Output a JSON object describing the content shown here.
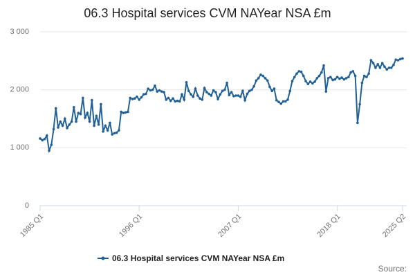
{
  "chart_data": {
    "type": "line",
    "title": "06.3 Hospital services CVM NAYear NSA £m",
    "source": "Source:",
    "categories": [
      "1985 Q1",
      null,
      null,
      null,
      null,
      null,
      null,
      null,
      null,
      null,
      null,
      null,
      null,
      null,
      null,
      null,
      null,
      null,
      null,
      null,
      null,
      null,
      null,
      null,
      null,
      null,
      null,
      null,
      null,
      null,
      null,
      null,
      null,
      null,
      null,
      null,
      null,
      null,
      null,
      null,
      null,
      null,
      null,
      null,
      "1996 Q1",
      null,
      null,
      null,
      null,
      null,
      null,
      null,
      null,
      null,
      null,
      null,
      null,
      null,
      null,
      null,
      null,
      null,
      null,
      null,
      null,
      null,
      null,
      null,
      null,
      null,
      null,
      null,
      null,
      null,
      null,
      null,
      null,
      null,
      null,
      null,
      null,
      null,
      null,
      null,
      null,
      null,
      null,
      null,
      "2007 Q1",
      null,
      null,
      null,
      null,
      null,
      null,
      null,
      null,
      null,
      null,
      null,
      null,
      null,
      null,
      null,
      null,
      null,
      null,
      null,
      null,
      null,
      null,
      null,
      null,
      null,
      null,
      null,
      null,
      null,
      null,
      null,
      null,
      null,
      null,
      null,
      null,
      null,
      null,
      null,
      null,
      null,
      null,
      null,
      "2018 Q1",
      null,
      null,
      null,
      null,
      null,
      null,
      null,
      null,
      null,
      null,
      null,
      null,
      null,
      null,
      null,
      null,
      null,
      null,
      null,
      null,
      null,
      null,
      null,
      null,
      null,
      null,
      null,
      null,
      "2025 Q2"
    ],
    "series": [
      {
        "name": "06.3 Hospital services CVM NAYear NSA £m",
        "color": "#206095",
        "values": [
          1160,
          1130,
          1150,
          1210,
          950,
          1050,
          1320,
          1680,
          1350,
          1450,
          1380,
          1500,
          1340,
          1400,
          1450,
          1700,
          1450,
          1600,
          1580,
          1860,
          1520,
          1600,
          1450,
          1820,
          1380,
          1550,
          1400,
          1750,
          1280,
          1380,
          1300,
          1430,
          1230,
          1250,
          1260,
          1300,
          1620,
          1600,
          1610,
          1620,
          1860,
          1840,
          1850,
          1880,
          1830,
          1870,
          1920,
          1930,
          2020,
          1990,
          2000,
          2070,
          1970,
          1990,
          1970,
          1960,
          1830,
          1860,
          1810,
          1850,
          1800,
          1810,
          1800,
          1920,
          1830,
          2130,
          1980,
          1920,
          1880,
          2020,
          1900,
          1850,
          1830,
          2030,
          1960,
          1930,
          1900,
          1990,
          1960,
          1840,
          1920,
          1980,
          2000,
          2120,
          1910,
          1960,
          1890,
          1900,
          1900,
          1880,
          1980,
          1820,
          1930,
          1980,
          2000,
          2060,
          2160,
          2200,
          2260,
          2240,
          2200,
          2160,
          2050,
          1980,
          2020,
          1820,
          1790,
          1760,
          1800,
          1800,
          1830,
          1980,
          2150,
          2220,
          2280,
          2320,
          2310,
          2240,
          2150,
          2100,
          2140,
          2110,
          2140,
          2200,
          2240,
          2300,
          2420,
          1970,
          2200,
          2220,
          2170,
          2180,
          2220,
          2190,
          2210,
          2180,
          2200,
          2220,
          2300,
          2320,
          2240,
          1430,
          1750,
          2120,
          2240,
          2220,
          2280,
          2510,
          2460,
          2380,
          2440,
          2380,
          2460,
          2400,
          2350,
          2380,
          2380,
          2430,
          2520,
          2510,
          2530,
          2540
        ]
      }
    ],
    "ylim": [
      0,
      3000
    ],
    "yticks": [
      0,
      {
        "value": 1000,
        "label": "1 000"
      },
      {
        "value": 2000,
        "label": "2 000"
      },
      {
        "value": 3000,
        "label": "3 000"
      }
    ],
    "grid": true
  }
}
